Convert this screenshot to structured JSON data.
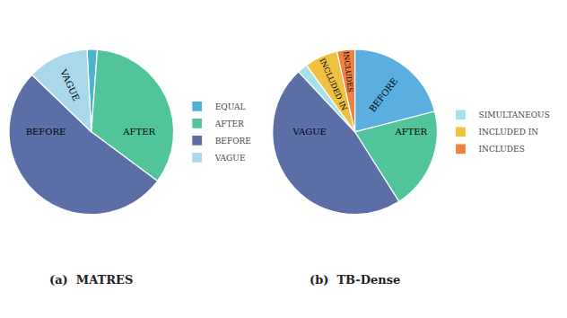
{
  "chart_data": [
    {
      "type": "pie",
      "title": "(a)  MATRES",
      "categories": [
        "EQUAL",
        "AFTER",
        "BEFORE",
        "VAGUE"
      ],
      "values": [
        2.0,
        34.0,
        52.0,
        12.0
      ],
      "colors": [
        "#4eb3d3",
        "#52c49a",
        "#5b6fa6",
        "#a8d8ea"
      ],
      "legend": "right"
    },
    {
      "type": "pie",
      "title": "(b)  TB-Dense",
      "categories": [
        "BEFORE",
        "AFTER",
        "VAGUE",
        "SIMULTANEOUS",
        "INCLUDED IN",
        "INCLUDES"
      ],
      "values": [
        21.0,
        20.0,
        47.0,
        2.0,
        6.5,
        3.5
      ],
      "colors": [
        "#5aafe0",
        "#52c49a",
        "#5b6fa6",
        "#a8e0e8",
        "#f0c040",
        "#f08040"
      ],
      "legend": "right"
    }
  ]
}
